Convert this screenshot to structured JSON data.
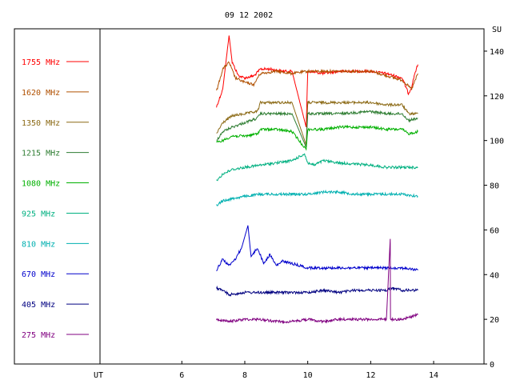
{
  "chart_data": {
    "type": "line",
    "title": "09 12 2002",
    "xlabel": "UT",
    "ylabel": "SU",
    "xlim": [
      3.4,
      15.6
    ],
    "ylim": [
      0,
      150
    ],
    "x_ticks": [
      6,
      8,
      10,
      12,
      14
    ],
    "y_ticks": [
      0,
      20,
      40,
      60,
      80,
      100,
      120,
      140
    ],
    "grid": false,
    "legend_position": "left",
    "series": [
      {
        "name": "1755 MHz",
        "color": "#ff0000",
        "points": [
          [
            7.1,
            115
          ],
          [
            7.2,
            119
          ],
          [
            7.3,
            123
          ],
          [
            7.4,
            135
          ],
          [
            7.5,
            147
          ],
          [
            7.6,
            135
          ],
          [
            7.8,
            129
          ],
          [
            8.0,
            128
          ],
          [
            8.3,
            129
          ],
          [
            8.5,
            132
          ],
          [
            8.8,
            132
          ],
          [
            9.2,
            131
          ],
          [
            9.5,
            131
          ],
          [
            9.95,
            106
          ],
          [
            10.0,
            131
          ],
          [
            10.5,
            130
          ],
          [
            11.0,
            131
          ],
          [
            11.5,
            131
          ],
          [
            12.0,
            131
          ],
          [
            12.5,
            130
          ],
          [
            13.0,
            128
          ],
          [
            13.2,
            121
          ],
          [
            13.3,
            124
          ],
          [
            13.4,
            130
          ],
          [
            13.5,
            134
          ]
        ]
      },
      {
        "name": "1620 MHz",
        "color": "#b05000",
        "points": [
          [
            7.1,
            122
          ],
          [
            7.2,
            127
          ],
          [
            7.3,
            132
          ],
          [
            7.5,
            135
          ],
          [
            7.7,
            128
          ],
          [
            8.0,
            126
          ],
          [
            8.3,
            125
          ],
          [
            8.4,
            128
          ],
          [
            8.5,
            130
          ],
          [
            9.0,
            131
          ],
          [
            9.5,
            130
          ],
          [
            10.0,
            131
          ],
          [
            10.5,
            131
          ],
          [
            11.0,
            131
          ],
          [
            12.0,
            131
          ],
          [
            12.5,
            129
          ],
          [
            13.0,
            127
          ],
          [
            13.3,
            123
          ],
          [
            13.5,
            130
          ]
        ]
      },
      {
        "name": "1350 MHz",
        "color": "#8b6914",
        "points": [
          [
            7.1,
            103
          ],
          [
            7.3,
            108
          ],
          [
            7.6,
            111
          ],
          [
            8.0,
            112
          ],
          [
            8.4,
            113
          ],
          [
            8.5,
            117
          ],
          [
            9.0,
            117
          ],
          [
            9.5,
            117
          ],
          [
            9.95,
            98
          ],
          [
            10.0,
            117
          ],
          [
            10.5,
            117
          ],
          [
            11.0,
            117
          ],
          [
            12.0,
            117
          ],
          [
            12.5,
            116
          ],
          [
            13.0,
            116
          ],
          [
            13.2,
            112
          ],
          [
            13.5,
            112
          ]
        ]
      },
      {
        "name": "1215 MHz",
        "color": "#2e7d32",
        "points": [
          [
            7.1,
            100
          ],
          [
            7.3,
            104
          ],
          [
            7.6,
            106
          ],
          [
            8.0,
            108
          ],
          [
            8.4,
            110
          ],
          [
            8.5,
            112
          ],
          [
            9.0,
            112
          ],
          [
            9.5,
            112
          ],
          [
            9.95,
            97
          ],
          [
            10.0,
            112
          ],
          [
            10.5,
            112
          ],
          [
            11.0,
            112
          ],
          [
            12.0,
            113
          ],
          [
            12.5,
            112
          ],
          [
            13.0,
            112
          ],
          [
            13.2,
            109
          ],
          [
            13.5,
            110
          ]
        ]
      },
      {
        "name": "1080 MHz",
        "color": "#00b000",
        "points": [
          [
            7.1,
            99
          ],
          [
            7.3,
            100
          ],
          [
            7.6,
            102
          ],
          [
            8.0,
            102
          ],
          [
            8.4,
            103
          ],
          [
            8.5,
            105
          ],
          [
            9.0,
            105
          ],
          [
            9.5,
            104
          ],
          [
            9.95,
            96
          ],
          [
            10.0,
            105
          ],
          [
            10.5,
            105
          ],
          [
            11.0,
            106
          ],
          [
            12.0,
            106
          ],
          [
            12.5,
            105
          ],
          [
            13.0,
            105
          ],
          [
            13.2,
            103
          ],
          [
            13.5,
            104
          ]
        ]
      },
      {
        "name": "925 MHz",
        "color": "#00b080",
        "points": [
          [
            7.1,
            82
          ],
          [
            7.3,
            85
          ],
          [
            7.6,
            87
          ],
          [
            8.0,
            88
          ],
          [
            8.5,
            89
          ],
          [
            9.0,
            90
          ],
          [
            9.5,
            91
          ],
          [
            9.9,
            94
          ],
          [
            10.0,
            90
          ],
          [
            10.2,
            89
          ],
          [
            10.5,
            91
          ],
          [
            11.0,
            90
          ],
          [
            12.0,
            89
          ],
          [
            12.5,
            88
          ],
          [
            13.0,
            88
          ],
          [
            13.5,
            88
          ]
        ]
      },
      {
        "name": "810 MHz",
        "color": "#00b0b0",
        "points": [
          [
            7.1,
            71
          ],
          [
            7.3,
            73
          ],
          [
            7.6,
            74
          ],
          [
            8.0,
            75
          ],
          [
            8.5,
            76
          ],
          [
            9.0,
            76
          ],
          [
            9.5,
            76
          ],
          [
            10.0,
            76
          ],
          [
            10.5,
            77
          ],
          [
            11.0,
            77
          ],
          [
            11.5,
            76
          ],
          [
            12.0,
            76
          ],
          [
            12.5,
            76
          ],
          [
            13.0,
            76
          ],
          [
            13.5,
            75
          ]
        ]
      },
      {
        "name": "670 MHz",
        "color": "#0000cc",
        "points": [
          [
            7.1,
            42
          ],
          [
            7.3,
            47
          ],
          [
            7.5,
            44
          ],
          [
            7.7,
            47
          ],
          [
            7.9,
            52
          ],
          [
            8.1,
            62
          ],
          [
            8.2,
            48
          ],
          [
            8.4,
            52
          ],
          [
            8.6,
            45
          ],
          [
            8.8,
            49
          ],
          [
            9.0,
            44
          ],
          [
            9.2,
            46
          ],
          [
            9.5,
            45
          ],
          [
            10.0,
            43
          ],
          [
            10.5,
            43
          ],
          [
            11.0,
            43
          ],
          [
            11.5,
            43
          ],
          [
            12.0,
            43
          ],
          [
            12.5,
            43
          ],
          [
            13.0,
            43
          ],
          [
            13.5,
            42
          ]
        ]
      },
      {
        "name": "405 MHz",
        "color": "#000080",
        "points": [
          [
            7.1,
            34
          ],
          [
            7.3,
            33
          ],
          [
            7.5,
            31
          ],
          [
            8.0,
            32
          ],
          [
            8.5,
            32
          ],
          [
            9.0,
            32
          ],
          [
            9.5,
            32
          ],
          [
            10.0,
            32
          ],
          [
            10.5,
            33
          ],
          [
            11.0,
            32
          ],
          [
            11.5,
            33
          ],
          [
            12.0,
            33
          ],
          [
            12.5,
            33
          ],
          [
            12.7,
            34
          ],
          [
            13.0,
            33
          ],
          [
            13.5,
            33
          ]
        ]
      },
      {
        "name": "275 MHz",
        "color": "#800080",
        "points": [
          [
            7.1,
            20
          ],
          [
            7.5,
            19
          ],
          [
            8.0,
            20
          ],
          [
            8.5,
            20
          ],
          [
            9.0,
            19
          ],
          [
            9.5,
            19
          ],
          [
            10.0,
            20
          ],
          [
            10.5,
            19
          ],
          [
            11.0,
            20
          ],
          [
            11.5,
            20
          ],
          [
            12.0,
            20
          ],
          [
            12.5,
            20
          ],
          [
            12.62,
            56
          ],
          [
            12.63,
            20
          ],
          [
            13.0,
            20
          ],
          [
            13.5,
            22
          ]
        ]
      }
    ]
  }
}
